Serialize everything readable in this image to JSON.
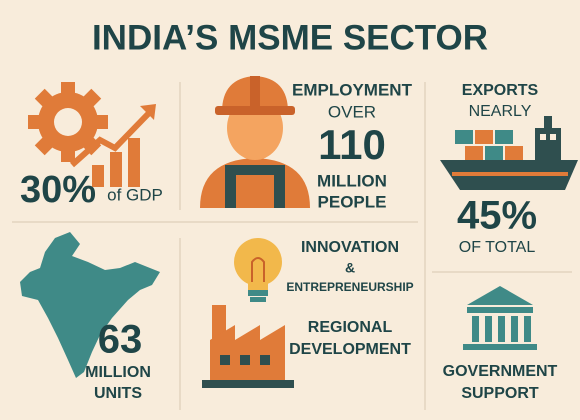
{
  "title": "INDIA’S MSME SECTOR",
  "gdp": {
    "value": "30%",
    "label": "of GDP"
  },
  "employment": {
    "lines": [
      "EMPLOYMENT",
      "OVER"
    ],
    "value": "110",
    "unit": [
      "MILLION",
      "PEOPLE"
    ]
  },
  "exports": {
    "lines": [
      "EXPORTS",
      "NEARLY"
    ],
    "value": "45%",
    "label": "OF TOTAL"
  },
  "units": {
    "value": "63",
    "unit": [
      "MILLION",
      "UNITS"
    ]
  },
  "innovation": [
    "INNOVATION",
    "&",
    "ENTREPRENEURSHIP"
  ],
  "regional": [
    "REGIONAL",
    "DEVELOPMENT"
  ],
  "government": [
    "GOVERNMENT",
    "SUPPORT"
  ]
}
